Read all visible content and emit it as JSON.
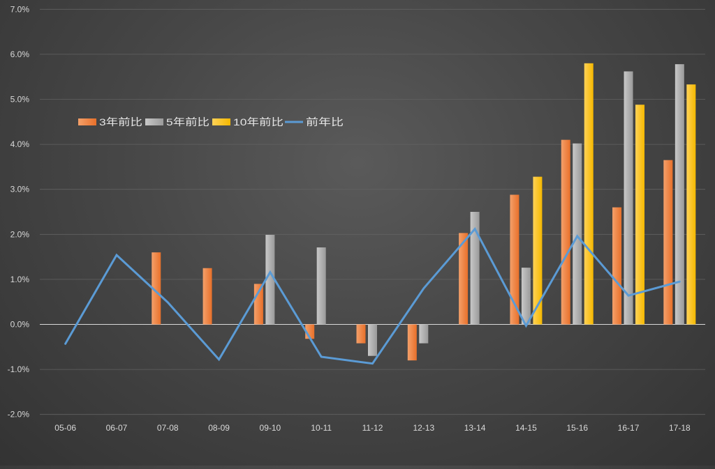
{
  "chart_data": {
    "type": "bar",
    "title": "",
    "xlabel": "",
    "ylabel": "",
    "categories": [
      "05-06",
      "06-07",
      "07-08",
      "08-09",
      "09-10",
      "10-11",
      "11-12",
      "12-13",
      "13-14",
      "14-15",
      "15-16",
      "16-17",
      "17-18"
    ],
    "ylim": [
      -2.0,
      7.0
    ],
    "yticks": [
      "7.0%",
      "6.0%",
      "5.0%",
      "4.0%",
      "3.0%",
      "2.0%",
      "1.0%",
      "0.0%",
      "-1.0%",
      "-2.0%"
    ],
    "grid": true,
    "legend_position": "left, upper-middle",
    "series": [
      {
        "name": "3年前比",
        "kind": "bar",
        "color": "#ED7D31",
        "values": [
          null,
          null,
          1.6,
          1.25,
          0.9,
          -0.32,
          -0.42,
          -0.8,
          2.03,
          2.88,
          4.1,
          2.6,
          3.65
        ]
      },
      {
        "name": "5年前比",
        "kind": "bar",
        "color": "#A5A5A5",
        "values": [
          null,
          null,
          null,
          null,
          1.99,
          1.71,
          -0.7,
          -0.42,
          2.5,
          1.26,
          4.02,
          5.62,
          5.78
        ]
      },
      {
        "name": "10年前比",
        "kind": "bar",
        "color": "#FFC000",
        "values": [
          null,
          null,
          null,
          null,
          null,
          null,
          null,
          null,
          null,
          3.28,
          5.8,
          4.88,
          5.33
        ]
      },
      {
        "name": "前年比",
        "kind": "line",
        "color": "#5B9BD5",
        "values": [
          -0.43,
          1.54,
          0.49,
          -0.78,
          1.16,
          -0.72,
          -0.87,
          0.8,
          2.12,
          -0.03,
          1.96,
          0.64,
          0.95
        ]
      }
    ]
  }
}
